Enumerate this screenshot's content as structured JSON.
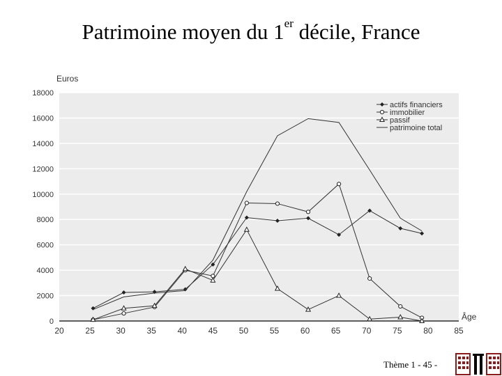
{
  "slide": {
    "title_main": "Patrimoine moyen du 1",
    "title_sup": "er",
    "title_rest": " décile, France",
    "footer": "Thème 1 - 45 -"
  },
  "chart_data": {
    "type": "line",
    "title": "",
    "xlabel": "Âge",
    "ylabel": "Euros",
    "xlim": [
      20,
      85
    ],
    "ylim": [
      0,
      18000
    ],
    "x_ticks": [
      20,
      25,
      30,
      35,
      40,
      45,
      50,
      55,
      60,
      65,
      70,
      75,
      80,
      85
    ],
    "y_ticks": [
      0,
      2000,
      4000,
      6000,
      8000,
      10000,
      12000,
      14000,
      16000,
      18000
    ],
    "grid": true,
    "legend_position": "top-right",
    "series": [
      {
        "name": "actifs financiers",
        "marker": "diamond",
        "x": [
          25.5,
          30.5,
          35.5,
          40.5,
          45,
          50.5,
          55.5,
          60.5,
          65.5,
          70.5,
          75.5,
          79
        ],
        "y": [
          1000,
          2250,
          2300,
          2500,
          4450,
          8150,
          7900,
          8100,
          6800,
          8700,
          7300,
          6900
        ]
      },
      {
        "name": "immobilier",
        "marker": "circle",
        "x": [
          25.5,
          30.5,
          35.5,
          40.5,
          45,
          50.5,
          55.5,
          60.5,
          65.5,
          70.5,
          75.5,
          79
        ],
        "y": [
          100,
          600,
          1100,
          4000,
          3550,
          9300,
          9250,
          8600,
          10800,
          3350,
          1150,
          250
        ]
      },
      {
        "name": "passif",
        "marker": "triangle",
        "x": [
          25.5,
          30.5,
          35.5,
          40.5,
          45,
          50.5,
          55.5,
          60.5,
          65.5,
          70.5,
          75.5,
          79
        ],
        "y": [
          100,
          1000,
          1200,
          4100,
          3200,
          7200,
          2550,
          900,
          2000,
          150,
          300,
          0
        ]
      },
      {
        "name": "patrimoine total",
        "marker": "none",
        "x": [
          25.5,
          30.5,
          35.5,
          40.5,
          45,
          50.5,
          55.5,
          60.5,
          65.5,
          70.5,
          75.5,
          79
        ],
        "y": [
          900,
          1900,
          2200,
          2400,
          4800,
          10200,
          14600,
          15950,
          15650,
          11900,
          8100,
          7100
        ]
      }
    ]
  }
}
